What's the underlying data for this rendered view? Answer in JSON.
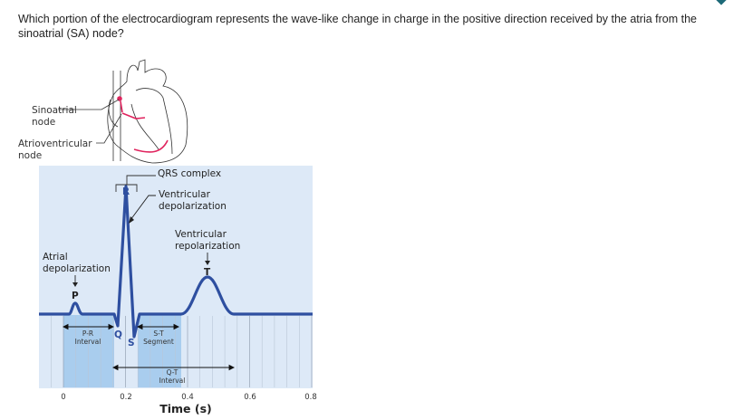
{
  "question": "Which portion of the electrocardiogram represents the wave-like change in charge in the positive direction received by the atria from the sinoatrial (SA) node?",
  "figure": {
    "heart_labels": {
      "sa_line1": "Sinoatrial",
      "sa_line2": "node",
      "av_line1": "Atrioventricular",
      "av_line2": "node"
    },
    "qrs_label": "QRS complex",
    "vdep_line1": "Ventricular",
    "vdep_line2": "depolarization",
    "vrep_line1": "Ventricular",
    "vrep_line2": "repolarization",
    "adep_line1": "Atrial",
    "adep_line2": "depolarization",
    "waves": {
      "p": "P",
      "q": "Q",
      "r": "R",
      "s": "S",
      "t": "T"
    },
    "pr_line1": "P-R",
    "pr_line2": "Interval",
    "st_line1": "S-T",
    "st_line2": "Segment",
    "qt_line1": "Q-T",
    "qt_line2": "Interval",
    "x_ticks": [
      "0",
      "0.2",
      "0.4",
      "0.6",
      "0.8"
    ],
    "x_label": "Time (s)",
    "colors": {
      "wave": "#2e4fa0",
      "background": "#dde9f7",
      "interval_fill": "#a9cdee",
      "conduction": "#e0245e"
    }
  }
}
